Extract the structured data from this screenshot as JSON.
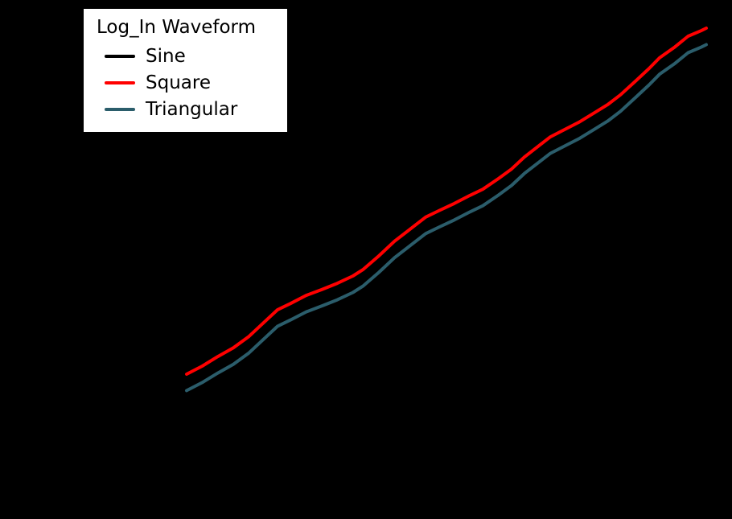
{
  "legend": {
    "title": "Log_In Waveform",
    "items": [
      {
        "label": "Sine",
        "color": "#000000"
      },
      {
        "label": "Square",
        "color": "#ff0000"
      },
      {
        "label": "Triangular",
        "color": "#2b5d6b"
      }
    ]
  },
  "chart_data": {
    "type": "line",
    "title": "",
    "xlabel": "",
    "ylabel": "",
    "xlim": [
      0,
      10
    ],
    "ylim": [
      0,
      10
    ],
    "grid": false,
    "legend_position": "upper left",
    "legend_title": "Log_In Waveform",
    "x": [
      0,
      0.3,
      0.6,
      0.9,
      1.2,
      1.5,
      1.75,
      2.0,
      2.3,
      2.6,
      2.9,
      3.2,
      3.4,
      3.7,
      4.0,
      4.3,
      4.6,
      4.85,
      5.15,
      5.45,
      5.7,
      6.0,
      6.25,
      6.5,
      6.8,
      7.0,
      7.3,
      7.55,
      7.85,
      8.1,
      8.35,
      8.65,
      8.9,
      9.1,
      9.4,
      9.65,
      9.9,
      10
    ],
    "series": [
      {
        "name": "Sine",
        "color": "#000000",
        "values": [
          0.55,
          0.77,
          1.03,
          1.27,
          1.58,
          1.98,
          2.31,
          2.48,
          2.7,
          2.86,
          3.03,
          3.23,
          3.41,
          3.78,
          4.18,
          4.51,
          4.84,
          5.01,
          5.21,
          5.43,
          5.6,
          5.89,
          6.15,
          6.48,
          6.81,
          7.03,
          7.25,
          7.43,
          7.69,
          7.91,
          8.18,
          8.57,
          8.9,
          9.19,
          9.49,
          9.78,
          9.93,
          10.0
        ]
      },
      {
        "name": "Square",
        "color": "#ff0000",
        "values": [
          0.55,
          0.77,
          1.03,
          1.27,
          1.58,
          1.98,
          2.31,
          2.48,
          2.7,
          2.86,
          3.03,
          3.23,
          3.41,
          3.78,
          4.18,
          4.51,
          4.84,
          5.01,
          5.21,
          5.43,
          5.6,
          5.89,
          6.15,
          6.48,
          6.81,
          7.03,
          7.25,
          7.43,
          7.69,
          7.91,
          8.18,
          8.57,
          8.9,
          9.19,
          9.49,
          9.78,
          9.93,
          10.0
        ]
      },
      {
        "name": "Triangular",
        "color": "#2b5d6b",
        "values": [
          0.1,
          0.32,
          0.58,
          0.82,
          1.13,
          1.53,
          1.86,
          2.03,
          2.25,
          2.41,
          2.58,
          2.78,
          2.96,
          3.33,
          3.73,
          4.06,
          4.39,
          4.56,
          4.76,
          4.98,
          5.15,
          5.44,
          5.7,
          6.03,
          6.36,
          6.58,
          6.8,
          6.98,
          7.24,
          7.46,
          7.73,
          8.12,
          8.45,
          8.74,
          9.04,
          9.33,
          9.48,
          9.55
        ]
      }
    ]
  }
}
